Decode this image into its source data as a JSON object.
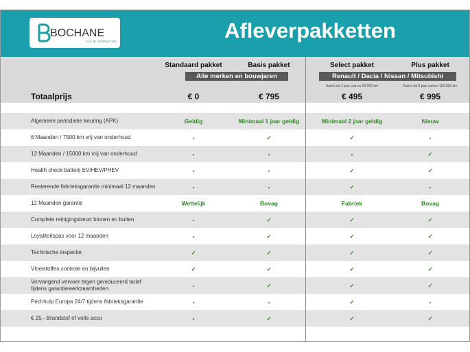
{
  "logo": {
    "name": "BOCHANE",
    "tagline": "ALS JE VOORUIT WIL"
  },
  "title": "Afleverpakketten",
  "columns": [
    "Standaard pakket",
    "Basis pakket",
    "Select pakket",
    "Plus pakket"
  ],
  "groups": [
    "Alle merken en bouwjaren",
    "Renault / Dacia / Nissan / Mitsubishi"
  ],
  "notes": [
    "Auto's tot 1 jaar oud en 20.000 km",
    "Auto's tot 5 jaar oud en 100.000 km"
  ],
  "total": {
    "label": "Totaalprijs",
    "prices": [
      "€ 0",
      "€ 795",
      "€ 495",
      "€ 995"
    ]
  },
  "rows": [
    [
      "Algemene periodieke keuring (APK)",
      "Geldig",
      "Minimaal 1 jaar geldig",
      "Minimaal 2 jaar geldig",
      "Nieuw"
    ],
    [
      "6 Maanden / 7500 km vrij van onderhoud",
      "-",
      "✓",
      "✓",
      "-"
    ],
    [
      "12 Maanden / 15000 km vrij van onderhoud",
      "-",
      "-",
      "-",
      "✓"
    ],
    [
      "Health check batterij EV/HEV/PHEV",
      "-",
      "-",
      "✓",
      "✓"
    ],
    [
      "Resterende fabrieksgarantie minimaal 12 maanden",
      "-",
      "-",
      "✓",
      "-"
    ],
    [
      "12 Maanden  garantie",
      "Wettelijk",
      "Bovag",
      "Fabriek",
      "Bovag"
    ],
    [
      "Complete reinigingsbeurt binnen en buiten",
      "-",
      "✓",
      "✓",
      "✓"
    ],
    [
      "Loyaliteitspas voor 12 maanden",
      "-",
      "✓",
      "✓",
      "✓"
    ],
    [
      "Technische inspectie",
      "✓",
      "✓",
      "✓",
      "✓"
    ],
    [
      "Vloeistoffen controle en bijvullen",
      "✓",
      "✓",
      "✓",
      "✓"
    ],
    [
      "Vervangend vervoer tegen gereduceerd tarief tijdens garantiewerkzaamheden",
      "-",
      "✓",
      "✓",
      "✓"
    ],
    [
      "Pechhulp Europa 24/7 tijdens fabrieksgarantie",
      "-",
      "-",
      "✓",
      "-"
    ],
    [
      "€ 25,- Brandstof of  volle accu",
      "-",
      "✓",
      "✓",
      "✓"
    ]
  ]
}
